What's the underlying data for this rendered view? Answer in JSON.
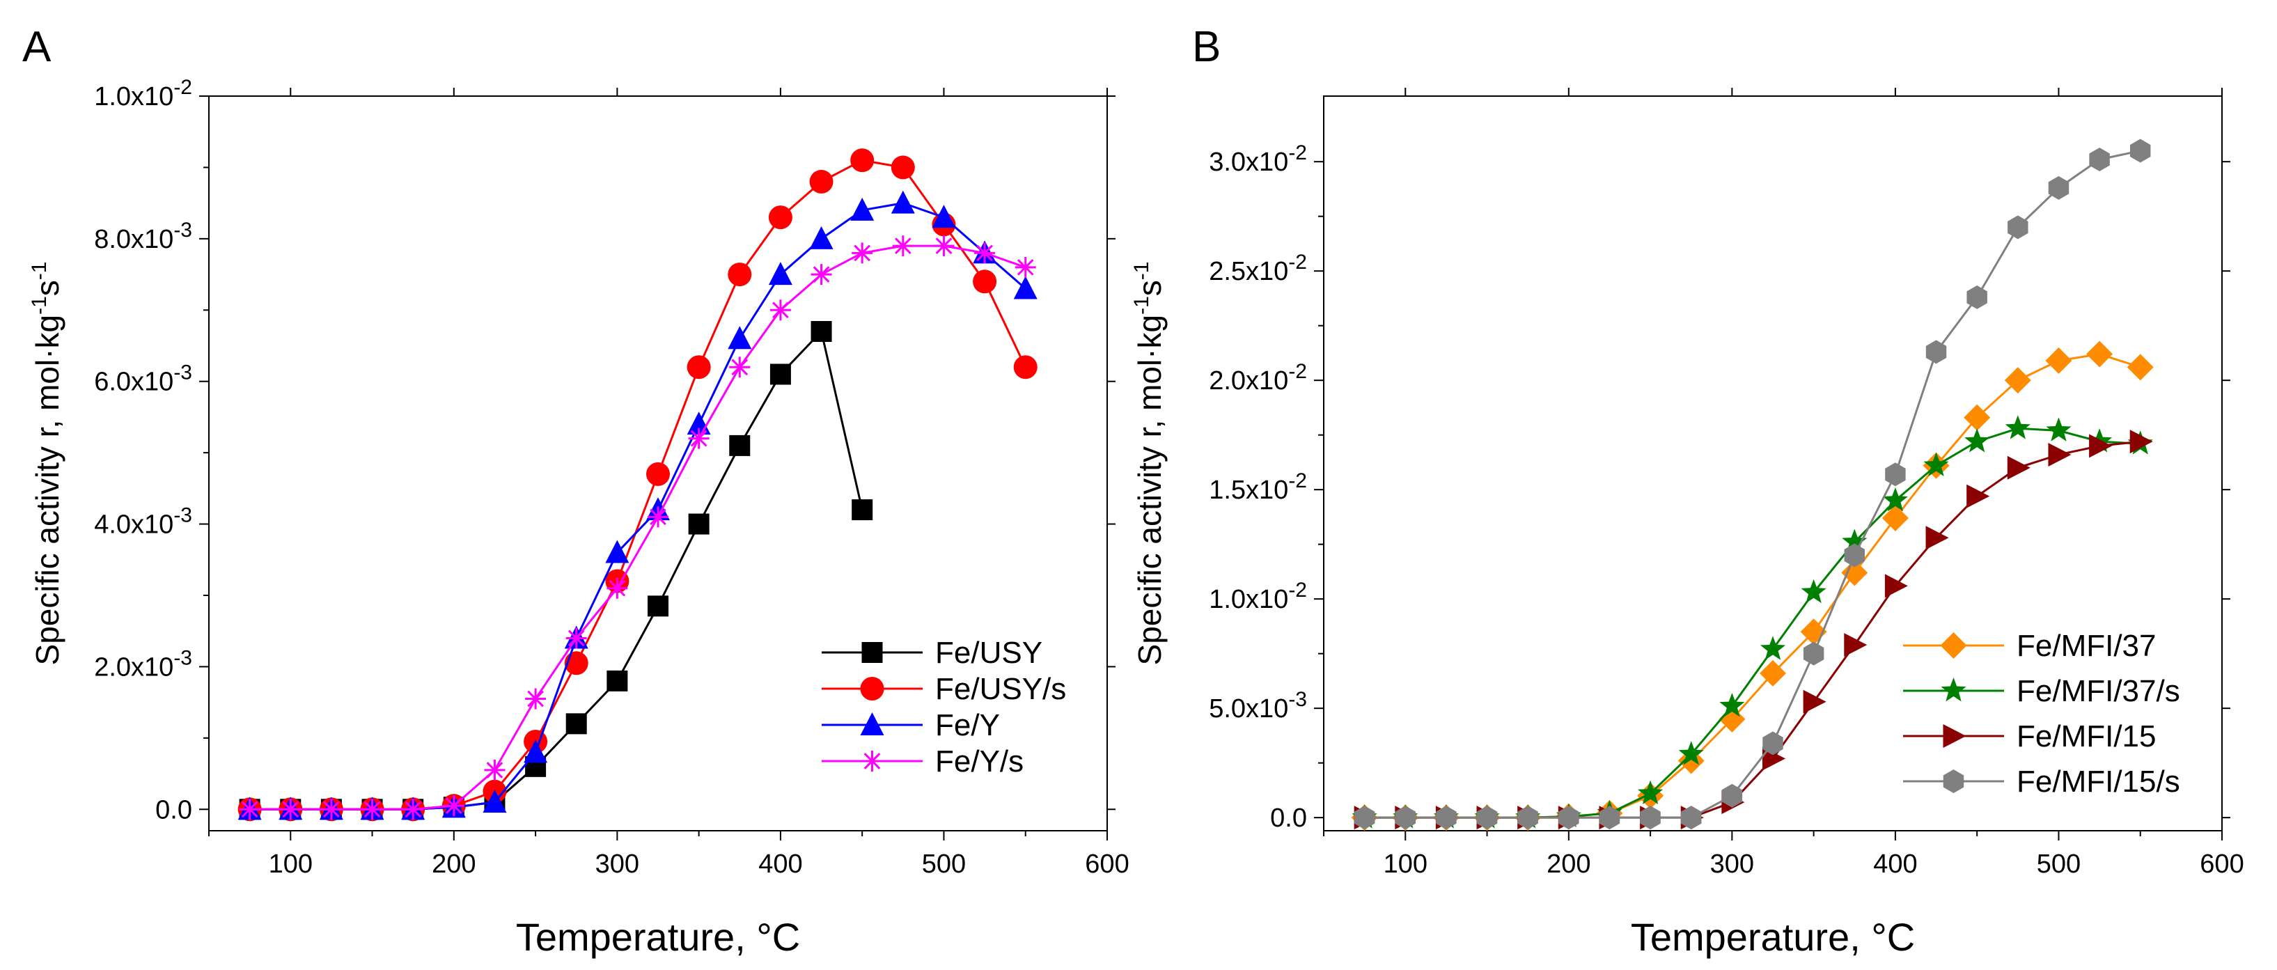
{
  "chart_data": [
    {
      "type": "line",
      "panel_label": "A",
      "xlabel": "Temperature, °C",
      "ylabel_prefix": "Specific activity r, mol·kg",
      "ylabel_exp1": "-1",
      "ylabel_mid": "s",
      "ylabel_exp2": "-1",
      "xlim": [
        50,
        600
      ],
      "ylim": [
        -0.0003,
        0.01
      ],
      "x_ticks": [
        100,
        200,
        300,
        400,
        500,
        600
      ],
      "x_tick_labels": [
        "100",
        "200",
        "300",
        "400",
        "500",
        "600"
      ],
      "y_ticks": [
        0,
        0.002,
        0.004,
        0.006,
        0.008,
        0.01
      ],
      "y_tick_labels": [
        {
          "mant": "0.0",
          "exp": ""
        },
        {
          "mant": "2.0x10",
          "exp": "-3"
        },
        {
          "mant": "4.0x10",
          "exp": "-3"
        },
        {
          "mant": "6.0x10",
          "exp": "-3"
        },
        {
          "mant": "8.0x10",
          "exp": "-3"
        },
        {
          "mant": "1.0x10",
          "exp": "-2"
        }
      ],
      "legend_position": "bottom-right",
      "series": [
        {
          "name": "Fe/USY",
          "color": "#000000",
          "marker": "square",
          "x": [
            75,
            100,
            125,
            150,
            175,
            200,
            225,
            250,
            275,
            300,
            325,
            350,
            375,
            400,
            425,
            450
          ],
          "y": [
            0,
            0,
            0,
            0,
            0,
            3e-05,
            0.0001,
            0.0006,
            0.0012,
            0.0018,
            0.00285,
            0.004,
            0.0051,
            0.0061,
            0.0067,
            0.0042
          ]
        },
        {
          "name": "Fe/USY/s",
          "color": "#ff0000",
          "marker": "circle",
          "x": [
            75,
            100,
            125,
            150,
            175,
            200,
            225,
            250,
            275,
            300,
            325,
            350,
            375,
            400,
            425,
            450,
            475,
            500,
            525,
            550
          ],
          "y": [
            0,
            0,
            0,
            0,
            0,
            5e-05,
            0.00025,
            0.00095,
            0.00205,
            0.0032,
            0.0047,
            0.0062,
            0.0075,
            0.0083,
            0.0088,
            0.0091,
            0.009,
            0.0082,
            0.0074,
            0.0062
          ]
        },
        {
          "name": "Fe/Y",
          "color": "#0000ff",
          "marker": "triangle-up",
          "x": [
            75,
            100,
            125,
            150,
            175,
            200,
            225,
            250,
            275,
            300,
            325,
            350,
            375,
            400,
            425,
            450,
            475,
            500,
            525,
            550
          ],
          "y": [
            0,
            0,
            0,
            0,
            0,
            3e-05,
            0.0001,
            0.0008,
            0.0024,
            0.0036,
            0.0042,
            0.0054,
            0.0066,
            0.0075,
            0.008,
            0.0084,
            0.0085,
            0.0083,
            0.0078,
            0.0073
          ]
        },
        {
          "name": "Fe/Y/s",
          "color": "#ff00ff",
          "marker": "asterisk",
          "x": [
            75,
            100,
            125,
            150,
            175,
            200,
            225,
            250,
            275,
            300,
            325,
            350,
            375,
            400,
            425,
            450,
            475,
            500,
            525,
            550
          ],
          "y": [
            0,
            0,
            0,
            0,
            0,
            5e-05,
            0.00055,
            0.00155,
            0.0024,
            0.0031,
            0.0041,
            0.0052,
            0.0062,
            0.007,
            0.0075,
            0.0078,
            0.0079,
            0.0079,
            0.0078,
            0.0076
          ]
        }
      ]
    },
    {
      "type": "line",
      "panel_label": "B",
      "xlabel": "Temperature, °C",
      "ylabel_prefix": "Specific activity r, mol·kg",
      "ylabel_exp1": "-1",
      "ylabel_mid": "s",
      "ylabel_exp2": "-1",
      "xlim": [
        50,
        600
      ],
      "ylim": [
        -0.0006,
        0.033
      ],
      "x_ticks": [
        100,
        200,
        300,
        400,
        500,
        600
      ],
      "x_tick_labels": [
        "100",
        "200",
        "300",
        "400",
        "500",
        "600"
      ],
      "y_ticks": [
        0,
        0.005,
        0.01,
        0.015,
        0.02,
        0.025,
        0.03
      ],
      "y_tick_labels": [
        {
          "mant": "0.0",
          "exp": ""
        },
        {
          "mant": "5.0x10",
          "exp": "-3"
        },
        {
          "mant": "1.0x10",
          "exp": "-2"
        },
        {
          "mant": "1.5x10",
          "exp": "-2"
        },
        {
          "mant": "2.0x10",
          "exp": "-2"
        },
        {
          "mant": "2.5x10",
          "exp": "-2"
        },
        {
          "mant": "3.0x10",
          "exp": "-2"
        }
      ],
      "legend_position": "bottom-right",
      "series": [
        {
          "name": "Fe/MFI/37",
          "color": "#ff8c00",
          "marker": "diamond",
          "x": [
            75,
            100,
            125,
            150,
            175,
            200,
            225,
            250,
            275,
            300,
            325,
            350,
            375,
            400,
            425,
            450,
            475,
            500,
            525,
            550
          ],
          "y": [
            0,
            0,
            0,
            0,
            0,
            5e-05,
            0.0002,
            0.001,
            0.0026,
            0.0045,
            0.0066,
            0.0085,
            0.0112,
            0.0137,
            0.0161,
            0.0183,
            0.02,
            0.0209,
            0.0212,
            0.0206
          ]
        },
        {
          "name": "Fe/MFI/37/s",
          "color": "#008000",
          "marker": "star",
          "x": [
            75,
            100,
            125,
            150,
            175,
            200,
            225,
            250,
            275,
            300,
            325,
            350,
            375,
            400,
            425,
            450,
            475,
            500,
            525,
            550
          ],
          "y": [
            0,
            0,
            0,
            0,
            0,
            5e-05,
            0.0002,
            0.0011,
            0.0029,
            0.0051,
            0.0077,
            0.0103,
            0.0126,
            0.0145,
            0.0161,
            0.0172,
            0.0178,
            0.0177,
            0.0172,
            0.0171
          ]
        },
        {
          "name": "Fe/MFI/15",
          "color": "#8b0000",
          "marker": "triangle-right",
          "x": [
            75,
            100,
            125,
            150,
            175,
            200,
            225,
            250,
            275,
            300,
            325,
            350,
            375,
            400,
            425,
            450,
            475,
            500,
            525,
            550
          ],
          "y": [
            0,
            0,
            0,
            0,
            0,
            0,
            0,
            0,
            0,
            0.0007,
            0.0027,
            0.0053,
            0.0079,
            0.0106,
            0.0128,
            0.0147,
            0.016,
            0.0166,
            0.017,
            0.0172
          ]
        },
        {
          "name": "Fe/MFI/15/s",
          "color": "#808080",
          "marker": "hexagon",
          "x": [
            75,
            100,
            125,
            150,
            175,
            200,
            225,
            250,
            275,
            300,
            325,
            350,
            375,
            400,
            425,
            450,
            475,
            500,
            525,
            550
          ],
          "y": [
            0,
            0,
            0,
            0,
            0,
            0,
            0,
            0,
            0,
            0.001,
            0.0034,
            0.0075,
            0.012,
            0.0157,
            0.0213,
            0.0238,
            0.027,
            0.0288,
            0.0301,
            0.0305
          ]
        }
      ]
    }
  ]
}
